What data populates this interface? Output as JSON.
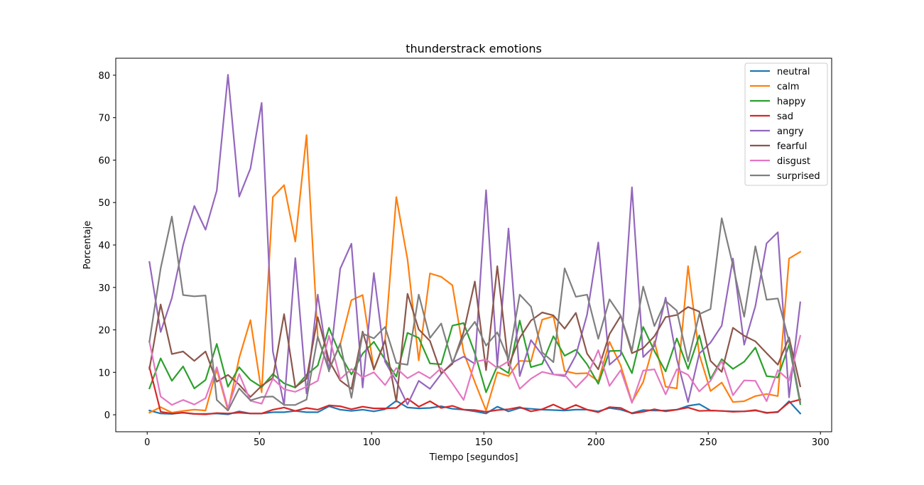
{
  "chart_data": {
    "type": "line",
    "title": "thunderstrack emotions",
    "xlabel": "Tiempo [segundos]",
    "ylabel": "Porcentaje",
    "xlim": [
      -14,
      305
    ],
    "ylim": [
      -4,
      84
    ],
    "xticks": [
      0,
      50,
      100,
      150,
      200,
      250,
      300
    ],
    "yticks": [
      0,
      10,
      20,
      30,
      40,
      50,
      60,
      70,
      80
    ],
    "grid": false,
    "legend_position": "top-right",
    "x": [
      1,
      6,
      11,
      16,
      21,
      26,
      31,
      36,
      41,
      46,
      51,
      56,
      61,
      66,
      71,
      76,
      81,
      86,
      91,
      96,
      101,
      106,
      111,
      116,
      121,
      126,
      131,
      136,
      141,
      146,
      151,
      156,
      161,
      166,
      171,
      176,
      181,
      186,
      191,
      196,
      201,
      206,
      211,
      216,
      221,
      226,
      231,
      236,
      241,
      246,
      251,
      256,
      261,
      266,
      271,
      276,
      281,
      286,
      291
    ],
    "series": [
      {
        "name": "neutral",
        "color": "#1f77b4",
        "values": [
          1.0,
          0.3,
          0.2,
          0.5,
          0.2,
          0.2,
          0.3,
          0.1,
          0.8,
          0.3,
          0.3,
          0.6,
          0.6,
          0.9,
          0.6,
          0.6,
          2.0,
          1.2,
          0.9,
          1.2,
          0.8,
          1.3,
          3.3,
          1.7,
          1.5,
          1.6,
          2.0,
          1.4,
          1.2,
          0.8,
          0.3,
          1.9,
          0.8,
          1.6,
          1.4,
          1.2,
          1.1,
          1.0,
          1.2,
          1.2,
          0.8,
          1.6,
          1.2,
          0.4,
          1.1,
          1.0,
          1.0,
          1.2,
          2.1,
          2.5,
          1.0,
          0.9,
          0.8,
          0.8,
          1.0,
          0.5,
          0.6,
          3.2,
          0.3
        ]
      },
      {
        "name": "calm",
        "color": "#ff7f0e",
        "values": [
          0.5,
          1.8,
          0.5,
          0.9,
          1.2,
          1.0,
          10.7,
          1.0,
          13.4,
          22.3,
          5.3,
          51.3,
          54.1,
          40.8,
          65.9,
          18.2,
          10.8,
          16.5,
          27.0,
          28.2,
          10.6,
          17.5,
          51.3,
          36.6,
          12.8,
          33.3,
          32.5,
          30.5,
          14.7,
          7.7,
          1.0,
          10.0,
          9.1,
          12.7,
          12.6,
          22.4,
          23.2,
          10.3,
          9.7,
          9.8,
          7.9,
          17.2,
          11.6,
          3.0,
          7.7,
          17.3,
          6.6,
          6.2,
          35.0,
          14.2,
          5.6,
          7.6,
          3.0,
          3.2,
          4.4,
          4.9,
          4.4,
          36.8,
          38.4
        ]
      },
      {
        "name": "happy",
        "color": "#2ca02c",
        "values": [
          6.2,
          13.3,
          8.0,
          11.4,
          6.2,
          8.2,
          16.7,
          6.6,
          11.2,
          8.2,
          6.5,
          9.6,
          7.4,
          6.4,
          9.4,
          11.6,
          20.5,
          14.1,
          9.5,
          14.4,
          17.2,
          13.0,
          9.0,
          19.3,
          18.1,
          12.1,
          11.9,
          21.0,
          21.6,
          14.5,
          5.3,
          11.5,
          9.8,
          22.2,
          11.2,
          12.0,
          18.5,
          13.9,
          15.3,
          11.9,
          7.3,
          15.0,
          15.1,
          9.8,
          20.7,
          15.0,
          10.2,
          18.0,
          10.8,
          18.7,
          8.4,
          13.1,
          10.8,
          12.5,
          15.8,
          9.1,
          8.8,
          16.5,
          2.5
        ]
      },
      {
        "name": "sad",
        "color": "#d62728",
        "values": [
          11.2,
          0.7,
          0.3,
          0.5,
          0.2,
          0.1,
          0.4,
          0.3,
          0.5,
          0.3,
          0.3,
          1.2,
          1.7,
          0.9,
          1.6,
          1.2,
          2.2,
          2.0,
          1.3,
          1.9,
          1.5,
          1.5,
          1.6,
          3.8,
          1.9,
          3.2,
          1.6,
          2.1,
          1.2,
          1.1,
          0.7,
          1.1,
          1.3,
          1.8,
          0.8,
          1.3,
          2.4,
          1.2,
          2.3,
          1.2,
          0.6,
          1.8,
          1.6,
          0.3,
          0.7,
          1.3,
          0.8,
          1.2,
          1.7,
          0.9,
          1.0,
          0.9,
          0.7,
          0.8,
          1.1,
          0.4,
          0.7,
          2.9,
          3.6
        ]
      },
      {
        "name": "angry",
        "color": "#9467bd",
        "values": [
          36.0,
          19.5,
          27.5,
          40.0,
          49.2,
          43.6,
          52.8,
          80.1,
          51.4,
          58.0,
          73.5,
          14.9,
          2.3,
          36.9,
          5.0,
          28.3,
          10.2,
          34.4,
          40.3,
          6.4,
          33.4,
          12.5,
          7.9,
          2.4,
          8.0,
          6.1,
          9.6,
          12.3,
          13.7,
          12.0,
          52.9,
          11.7,
          43.9,
          9.1,
          17.6,
          14.1,
          9.5,
          9.1,
          14.0,
          23.6,
          40.6,
          11.8,
          14.1,
          53.6,
          13.6,
          16.2,
          27.6,
          13.1,
          3.0,
          14.4,
          17.0,
          21.0,
          36.8,
          16.5,
          25.6,
          40.4,
          43.0,
          4.1,
          26.5
        ]
      },
      {
        "name": "fearful",
        "color": "#8c564b",
        "values": [
          10.8,
          26.0,
          14.3,
          14.9,
          12.7,
          14.9,
          7.8,
          9.4,
          7.1,
          4.2,
          6.8,
          8.7,
          23.7,
          6.5,
          8.5,
          23.0,
          12.8,
          8.1,
          6.1,
          19.6,
          10.7,
          17.5,
          3.1,
          28.5,
          20.1,
          17.4,
          9.8,
          12.0,
          19.5,
          31.4,
          10.5,
          35.0,
          11.6,
          18.1,
          22.2,
          24.1,
          23.4,
          20.3,
          24.0,
          14.4,
          10.7,
          19.0,
          23.3,
          14.5,
          15.7,
          18.5,
          23.0,
          23.5,
          25.4,
          24.3,
          12.7,
          10.1,
          20.5,
          18.6,
          17.3,
          14.5,
          11.8,
          18.2,
          6.7
        ]
      },
      {
        "name": "disgust",
        "color": "#e377c2",
        "values": [
          17.2,
          4.3,
          2.3,
          3.5,
          2.4,
          3.9,
          11.2,
          1.5,
          9.6,
          3.3,
          2.6,
          8.5,
          6.0,
          5.4,
          6.6,
          8.0,
          18.6,
          8.4,
          10.8,
          8.8,
          10.0,
          7.0,
          11.0,
          8.6,
          10.1,
          8.6,
          11.0,
          7.4,
          3.5,
          12.5,
          13.0,
          11.0,
          12.6,
          6.1,
          8.5,
          10.1,
          9.5,
          9.4,
          6.4,
          9.1,
          15.2,
          6.8,
          10.5,
          2.8,
          10.4,
          10.7,
          4.8,
          10.7,
          9.4,
          5.5,
          8.0,
          12.7,
          4.6,
          8.1,
          8.0,
          3.2,
          10.5,
          8.1,
          18.6
        ]
      },
      {
        "name": "surprised",
        "color": "#7f7f7f",
        "values": [
          17.2,
          34.5,
          46.7,
          28.2,
          27.9,
          28.1,
          3.5,
          1.0,
          6.2,
          3.4,
          4.2,
          4.3,
          2.3,
          2.3,
          3.6,
          18.4,
          10.4,
          16.8,
          4.0,
          19.1,
          18.0,
          20.7,
          12.2,
          11.8,
          28.3,
          18.1,
          21.5,
          12.3,
          18.4,
          21.9,
          16.3,
          19.4,
          13.0,
          28.3,
          25.5,
          14.7,
          12.4,
          34.5,
          27.8,
          28.3,
          17.9,
          27.2,
          23.3,
          15.1,
          30.2,
          20.9,
          26.8,
          24.5,
          12.6,
          23.7,
          24.9,
          46.3,
          35.2,
          23.1,
          39.7,
          27.1,
          27.4,
          17.3,
          3.0
        ]
      }
    ]
  }
}
